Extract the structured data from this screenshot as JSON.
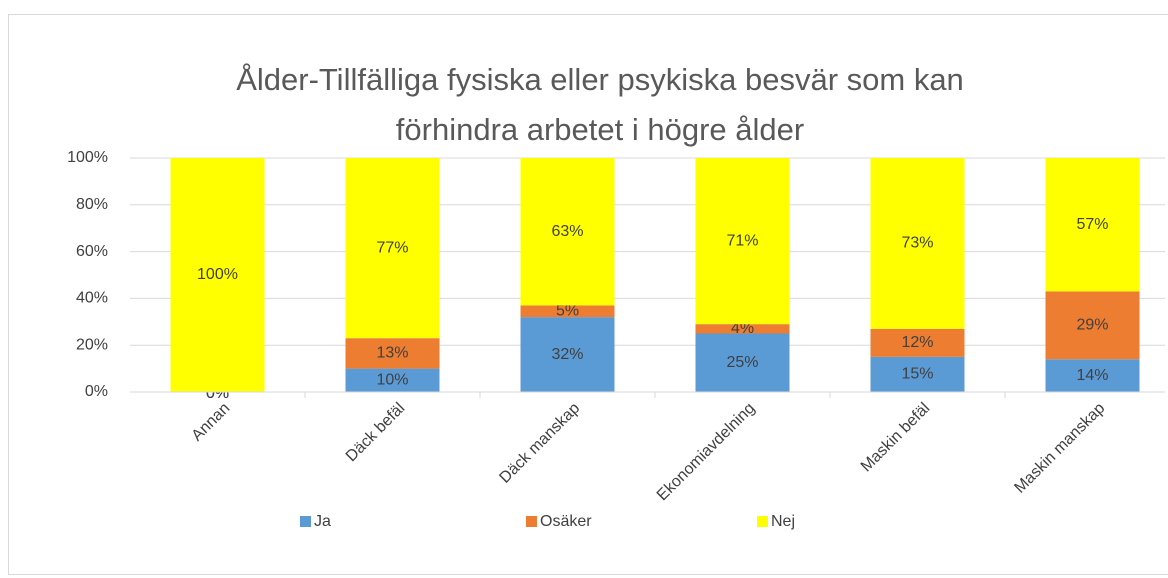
{
  "chart_data": {
    "type": "stacked_bar",
    "title": "Ålder-Tillfälliga fysiska eller psykiska besvär som kan förhindra arbetet i högre ålder",
    "categories": [
      "Annan",
      "Däck befäl",
      "Däck manskap",
      "Ekonomiavdelning",
      "Maskin befäl",
      "Maskin manskap"
    ],
    "series": [
      {
        "name": "Ja",
        "color": "#5b9bd5",
        "values": [
          0,
          10,
          32,
          25,
          15,
          14
        ],
        "value_labels": [
          "0%",
          "10%",
          "32%",
          "25%",
          "15%",
          "14%"
        ]
      },
      {
        "name": "Osäker",
        "color": "#ed7d31",
        "values": [
          0,
          13,
          5,
          4,
          12,
          29
        ],
        "value_labels": [
          "0%",
          "13%",
          "5%",
          "4%",
          "12%",
          "29%"
        ]
      },
      {
        "name": "Nej",
        "color": "#ffff00",
        "values": [
          100,
          77,
          63,
          71,
          73,
          57
        ],
        "value_labels": [
          "100%",
          "77%",
          "63%",
          "71%",
          "73%",
          "57%"
        ]
      }
    ],
    "ylim": [
      0,
      100
    ],
    "yticks": [
      {
        "value": 0,
        "label": "0%"
      },
      {
        "value": 20,
        "label": "20%"
      },
      {
        "value": 40,
        "label": "40%"
      },
      {
        "value": 60,
        "label": "60%"
      },
      {
        "value": 80,
        "label": "80%"
      },
      {
        "value": 100,
        "label": "100%"
      }
    ],
    "grid": true,
    "legend": "bottom"
  }
}
